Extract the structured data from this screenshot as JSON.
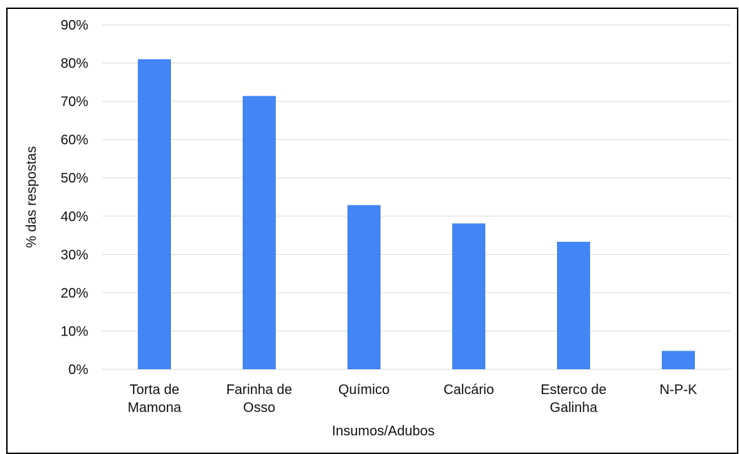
{
  "chart_data": {
    "type": "bar",
    "x_label": "Insumos/Adubos",
    "y_label": "%  das respostas",
    "categories": [
      "Torta de Mamona",
      "Farinha de Osso",
      "Químico",
      "Calcário",
      "Esterco de Galinha",
      "N-P-K"
    ],
    "values": [
      81.0,
      71.4,
      42.9,
      38.1,
      33.3,
      4.8
    ],
    "color": "#4285f4",
    "ylim": [
      0,
      90
    ],
    "yticks": [
      {
        "value": 0,
        "label": "0%"
      },
      {
        "value": 10,
        "label": "10%"
      },
      {
        "value": 20,
        "label": "20%"
      },
      {
        "value": 30,
        "label": "30%"
      },
      {
        "value": 40,
        "label": "40%"
      },
      {
        "value": 50,
        "label": "50%"
      },
      {
        "value": 60,
        "label": "60%"
      },
      {
        "value": 70,
        "label": "70%"
      },
      {
        "value": 80,
        "label": "80%"
      },
      {
        "value": 90,
        "label": "90%"
      }
    ],
    "grid": true
  }
}
